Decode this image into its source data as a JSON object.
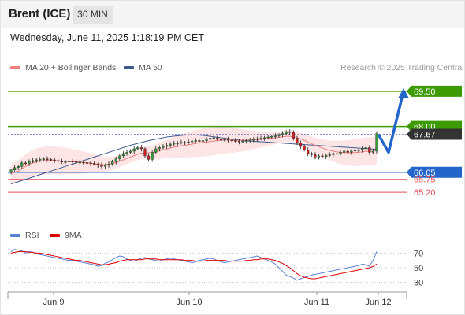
{
  "header": {
    "instrument": "Brent (ICE)",
    "timeframe": "30 MIN",
    "datetime": "Wednesday, June 11, 2025 1:18:19 PM CET"
  },
  "legend": {
    "ma20_label": "MA 20 + Bollinger Bands",
    "ma50_label": "MA 50",
    "credit": "Research © 2025 Trading Central"
  },
  "rsi_legend": {
    "rsi_label": "RSI",
    "ma_label": "9MA"
  },
  "colors": {
    "green": "#3d9a00",
    "blue": "#2365c8",
    "red": "#e0505a",
    "dark": "#333333",
    "ma20": "#f08080",
    "ma50": "#3c5a8c",
    "band": "#fddcdc",
    "rsi": "#5a7fd6",
    "rsi_ma": "#e00000"
  },
  "chart_data": [
    {
      "type": "candlestick",
      "x_axis_labels": [
        "Jun 9",
        "Jun 10",
        "Jun 11",
        "Jun 12"
      ],
      "price_axis": [
        {
          "label": "69.50",
          "value": 69.5,
          "kind": "resistance",
          "color": "#3d9a00"
        },
        {
          "label": "68.00",
          "value": 68.0,
          "kind": "resistance",
          "color": "#3d9a00"
        },
        {
          "label": "67.67",
          "value": 67.67,
          "kind": "last",
          "color": "#333333"
        },
        {
          "label": "66.05",
          "value": 66.05,
          "kind": "pivot",
          "color": "#2365c8"
        },
        {
          "label": "65.75",
          "value": 65.75,
          "kind": "support",
          "color": "#e0505a"
        },
        {
          "label": "65.20",
          "value": 65.2,
          "kind": "support",
          "color": "#e0505a"
        }
      ],
      "ylim": [
        64.4,
        70.2
      ],
      "close": [
        66.15,
        66.25,
        66.3,
        66.45,
        66.42,
        66.5,
        66.55,
        66.58,
        66.6,
        66.62,
        66.6,
        66.58,
        66.55,
        66.52,
        66.5,
        66.5,
        66.52,
        66.5,
        66.48,
        66.48,
        66.46,
        66.45,
        66.42,
        66.4,
        66.35,
        66.3,
        66.35,
        66.4,
        66.5,
        66.62,
        66.75,
        66.85,
        66.9,
        66.95,
        67.05,
        67.1,
        67.05,
        66.75,
        66.6,
        66.9,
        67.05,
        67.1,
        67.15,
        67.2,
        67.25,
        67.28,
        67.3,
        67.32,
        67.32,
        67.35,
        67.38,
        67.4,
        67.38,
        67.4,
        67.45,
        67.5,
        67.52,
        67.45,
        67.42,
        67.45,
        67.42,
        67.4,
        67.38,
        67.35,
        67.38,
        67.4,
        67.42,
        67.45,
        67.48,
        67.5,
        67.52,
        67.55,
        67.58,
        67.6,
        67.65,
        67.7,
        67.78,
        67.75,
        67.5,
        67.3,
        67.15,
        67.0,
        66.85,
        66.8,
        66.7,
        66.75,
        66.72,
        66.78,
        66.8,
        66.85,
        66.85,
        66.9,
        66.95,
        66.9,
        66.95,
        67.0,
        67.0,
        67.05,
        67.1,
        66.9,
        66.95,
        67.7
      ],
      "ma20": [
        66.0,
        66.05,
        66.1,
        66.2,
        66.3,
        66.38,
        66.45,
        66.5,
        66.52,
        66.55,
        66.56,
        66.56,
        66.55,
        66.54,
        66.53,
        66.52,
        66.52,
        66.5,
        66.49,
        66.48,
        66.47,
        66.46,
        66.44,
        66.42,
        66.4,
        66.38,
        66.38,
        66.4,
        66.43,
        66.47,
        66.52,
        66.58,
        66.64,
        66.7,
        66.76,
        66.82,
        66.86,
        66.87,
        66.88,
        66.9,
        66.93,
        66.97,
        67.0,
        67.04,
        67.08,
        67.12,
        67.15,
        67.18,
        67.2,
        67.22,
        67.25,
        67.28,
        67.3,
        67.32,
        67.34,
        67.36,
        67.38,
        67.4,
        67.41,
        67.42,
        67.42,
        67.42,
        67.41,
        67.41,
        67.41,
        67.42,
        67.42,
        67.43,
        67.44,
        67.45,
        67.46,
        67.48,
        67.5,
        67.52,
        67.54,
        67.56,
        67.58,
        67.58,
        67.56,
        67.52,
        67.47,
        67.41,
        67.34,
        67.27,
        67.2,
        67.14,
        67.08,
        67.03,
        66.98,
        66.95,
        66.92,
        66.9,
        66.89,
        66.88,
        66.88,
        66.89,
        66.9,
        66.92,
        66.94,
        66.94,
        66.95,
        67.0
      ],
      "ma50": [
        65.55,
        65.6,
        65.65,
        65.7,
        65.75,
        65.8,
        65.85,
        65.9,
        65.95,
        66.0,
        66.05,
        66.1,
        66.15,
        66.2,
        66.25,
        66.3,
        66.35,
        66.4,
        66.45,
        66.5,
        66.55,
        66.6,
        66.65,
        66.7,
        66.75,
        66.8,
        66.85,
        66.9,
        66.95,
        67.0,
        67.05,
        67.1,
        67.15,
        67.2,
        67.24,
        67.28,
        67.32,
        67.36,
        67.4,
        67.43,
        67.46,
        67.49,
        67.52,
        67.55,
        67.57,
        67.59,
        67.6,
        67.62,
        67.63,
        67.64,
        67.64,
        67.64,
        67.63,
        67.62,
        67.6,
        67.58,
        67.56,
        67.54,
        67.52,
        67.5,
        67.48,
        67.46,
        67.44,
        67.42,
        67.4,
        67.39,
        67.38,
        67.37,
        67.36,
        67.35,
        67.34,
        67.33,
        67.32,
        67.31,
        67.3,
        67.29,
        67.28,
        67.27,
        67.26,
        67.25,
        67.24,
        67.23,
        67.22,
        67.21,
        67.2,
        67.19,
        67.18,
        67.17,
        67.16,
        67.15,
        67.14,
        67.13,
        67.12,
        67.11,
        67.1,
        67.09,
        67.08,
        67.07,
        67.06,
        67.05,
        67.04,
        67.03
      ],
      "forecast_path": [
        67.67,
        66.9,
        69.5
      ]
    },
    {
      "type": "line",
      "series": [
        {
          "name": "RSI",
          "values": [
            72,
            75,
            74,
            73,
            70,
            72,
            71,
            69,
            68,
            67,
            66,
            65,
            64,
            63,
            62,
            61,
            60,
            60,
            59,
            58,
            57,
            56,
            55,
            54,
            52,
            53,
            56,
            58,
            61,
            64,
            66,
            65,
            62,
            60,
            59,
            61,
            63,
            64,
            62,
            61,
            60,
            59,
            61,
            62,
            63,
            62,
            61,
            60,
            59,
            58,
            57,
            58,
            60,
            61,
            62,
            63,
            62,
            60,
            58,
            57,
            58,
            59,
            60,
            61,
            62,
            63,
            64,
            65,
            66,
            64,
            62,
            60,
            58,
            55,
            50,
            45,
            40,
            38,
            36,
            33,
            35,
            37,
            38,
            40,
            41,
            42,
            43,
            44,
            45,
            46,
            47,
            48,
            49,
            50,
            51,
            52,
            53,
            55,
            54,
            52,
            60,
            72
          ]
        },
        {
          "name": "9MA",
          "values": [
            70,
            71,
            72,
            72,
            72,
            71,
            71,
            70,
            70,
            69,
            68,
            67,
            66,
            65,
            64,
            63,
            62,
            61,
            60,
            60,
            59,
            58,
            57,
            56,
            55,
            54,
            54,
            55,
            56,
            57,
            59,
            60,
            61,
            61,
            61,
            61,
            61,
            62,
            62,
            62,
            62,
            61,
            61,
            61,
            61,
            61,
            61,
            61,
            60,
            60,
            60,
            59,
            59,
            59,
            60,
            60,
            60,
            60,
            60,
            60,
            59,
            59,
            59,
            59,
            59,
            60,
            60,
            61,
            61,
            62,
            62,
            62,
            61,
            60,
            58,
            56,
            53,
            50,
            46,
            42,
            39,
            37,
            36,
            35,
            35,
            36,
            37,
            38,
            39,
            40,
            41,
            42,
            43,
            44,
            45,
            46,
            47,
            48,
            49,
            50,
            52,
            55
          ]
        }
      ],
      "y_axis_labels": [
        "70",
        "50",
        "30"
      ],
      "ylim": [
        20,
        80
      ]
    }
  ]
}
